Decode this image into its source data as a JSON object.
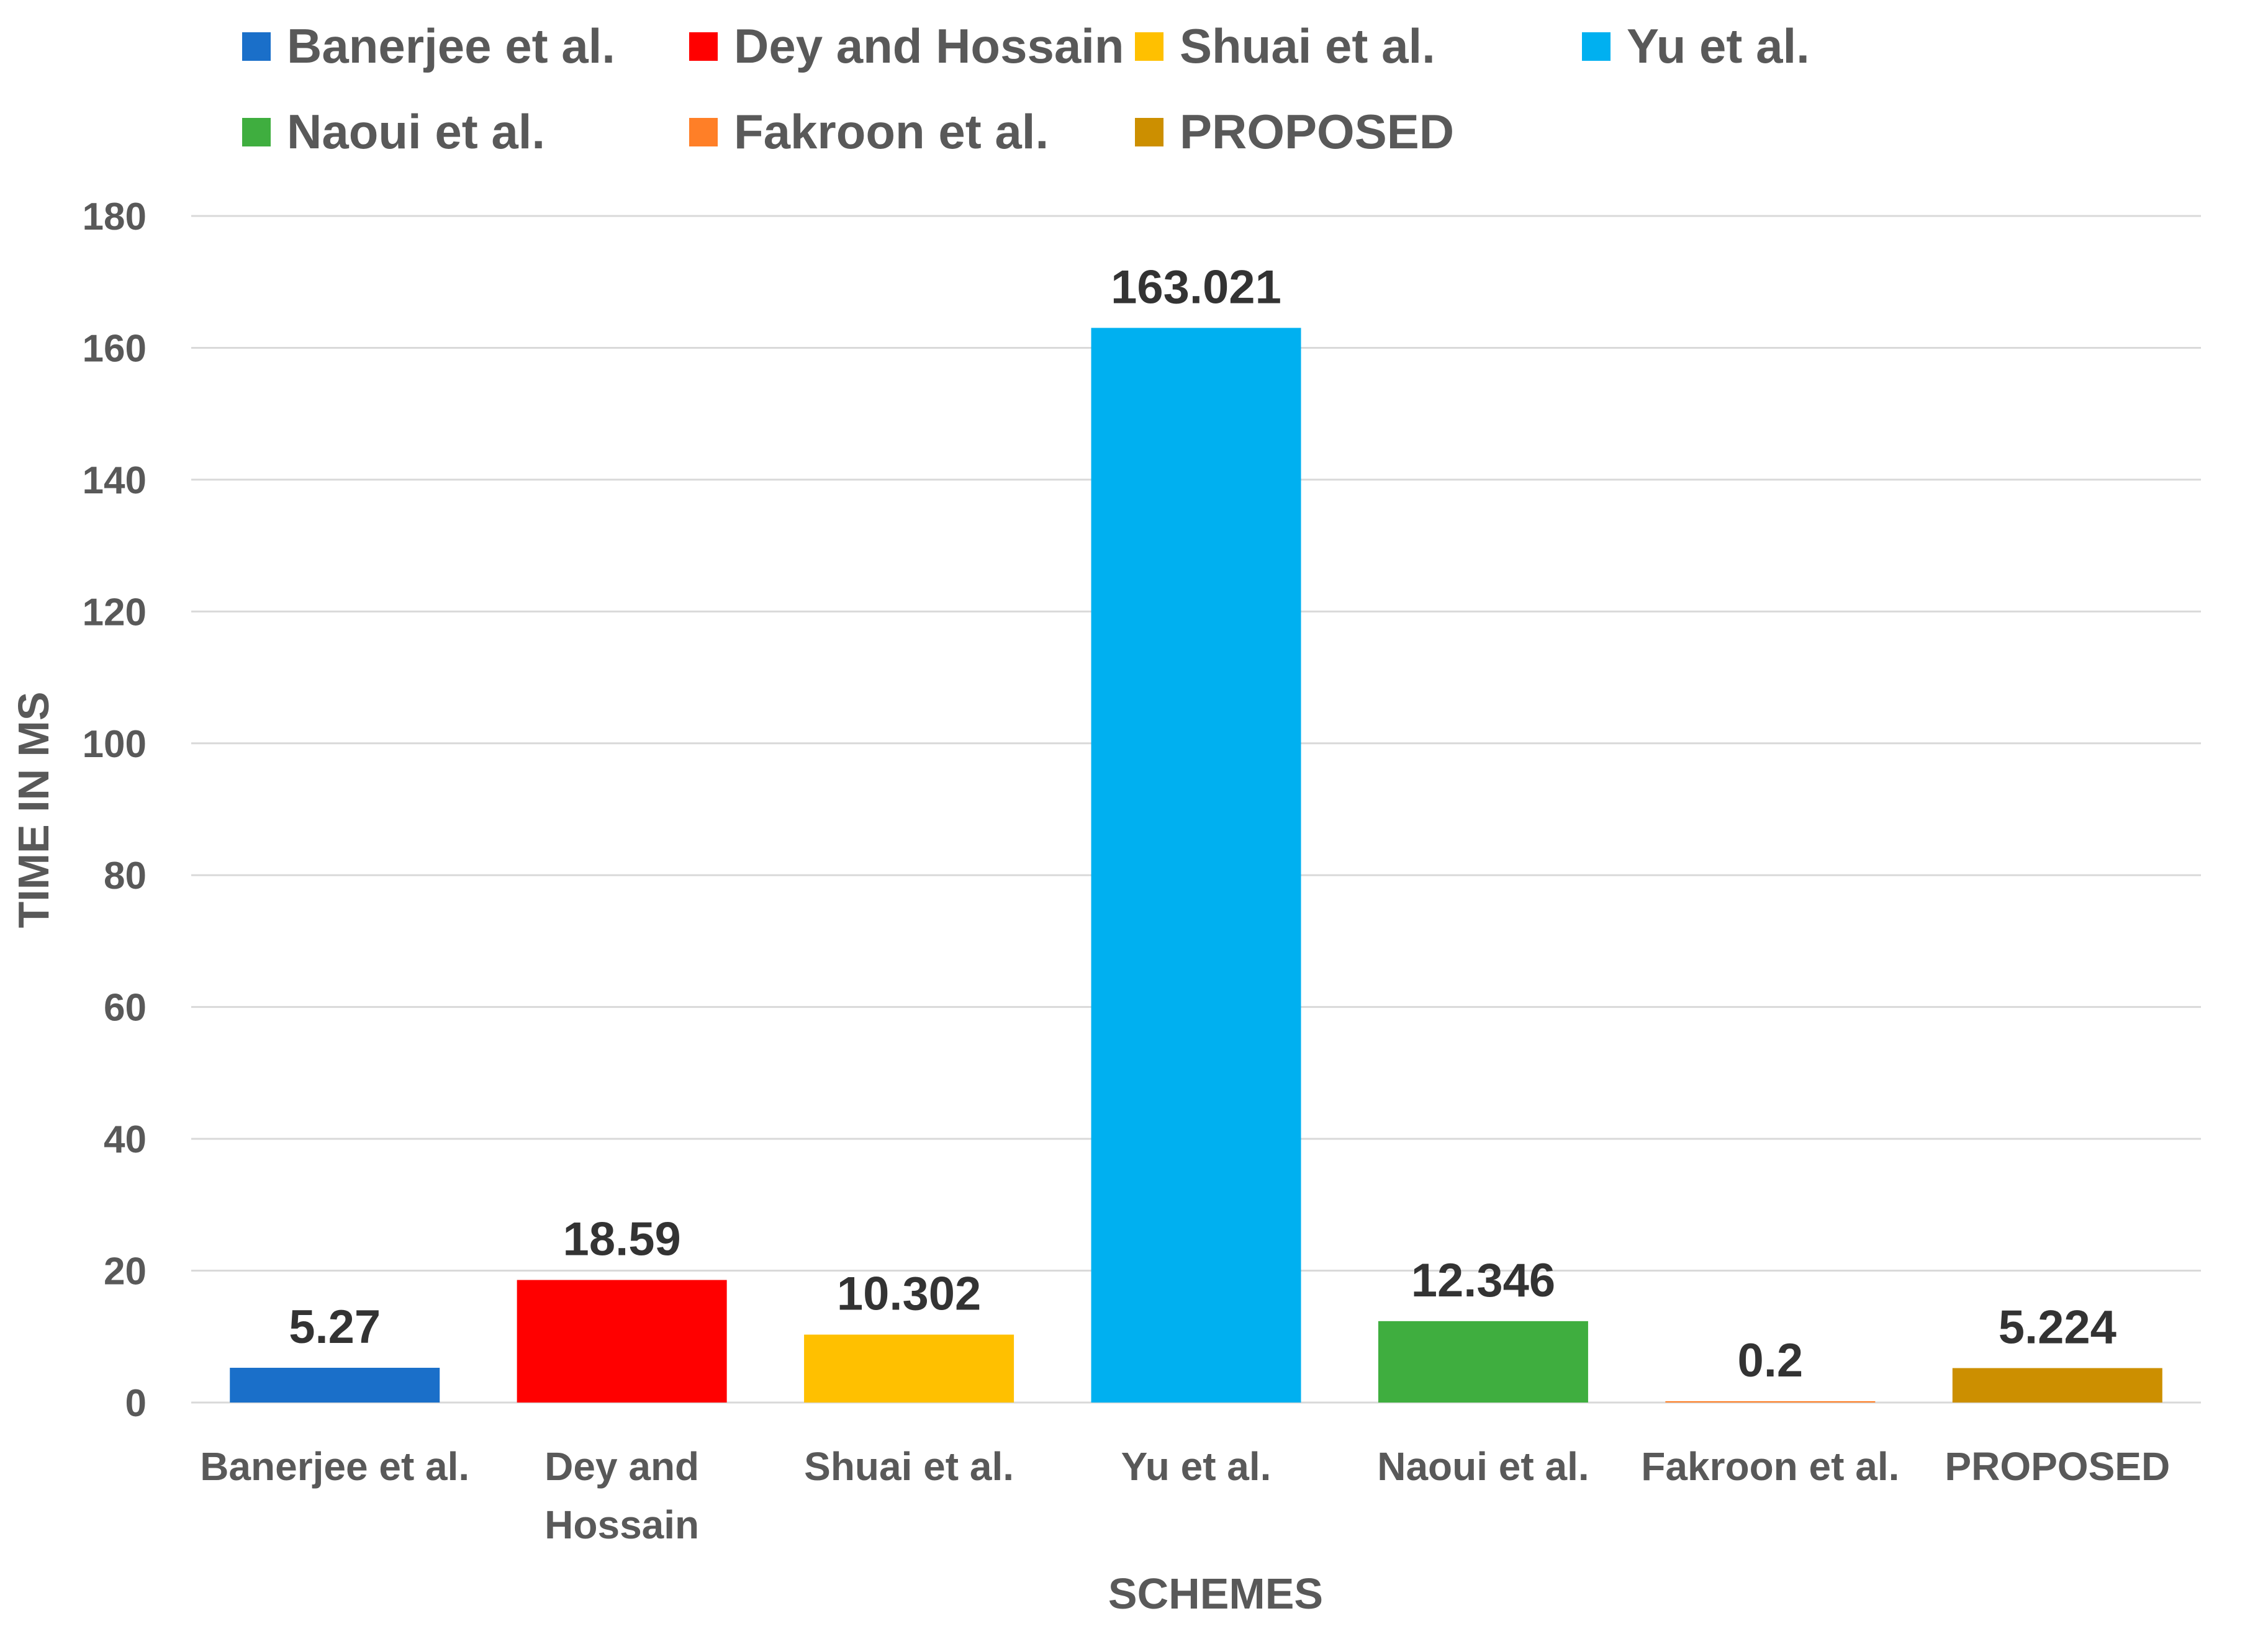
{
  "chart_data": {
    "type": "bar",
    "title": "",
    "xlabel": "SCHEMES",
    "ylabel": "TIME IN MS",
    "ylim": [
      0,
      180
    ],
    "yticks": [
      0,
      20,
      40,
      60,
      80,
      100,
      120,
      140,
      160,
      180
    ],
    "grid": true,
    "legend_position": "top",
    "categories": [
      {
        "name": "Banerjee et al.",
        "label_lines": [
          "Banerjee et al."
        ]
      },
      {
        "name": "Dey and Hossain",
        "label_lines": [
          "Dey and",
          "Hossain"
        ]
      },
      {
        "name": "Shuai et al.",
        "label_lines": [
          "Shuai et al."
        ]
      },
      {
        "name": "Yu et al.",
        "label_lines": [
          "Yu et al."
        ]
      },
      {
        "name": "Naoui et al.",
        "label_lines": [
          "Naoui et al."
        ]
      },
      {
        "name": "Fakroon et al.",
        "label_lines": [
          "Fakroon et al."
        ]
      },
      {
        "name": "PROPOSED",
        "label_lines": [
          "PROPOSED"
        ]
      }
    ],
    "values": [
      5.27,
      18.59,
      10.302,
      163.021,
      12.346,
      0.2,
      5.224
    ],
    "data_labels": [
      "5.27",
      "18.59",
      "10.302",
      "163.021",
      "12.346",
      "0.2",
      "5.224"
    ],
    "colors": [
      "#1a6fc9",
      "#ff0000",
      "#ffc000",
      "#00b0f0",
      "#3fae3f",
      "#ff7f27",
      "#cc8f00"
    ],
    "legend": [
      "Banerjee et al.",
      "Dey and Hossain",
      "Shuai et al.",
      "Yu et al.",
      "Naoui et al.",
      "Fakroon et al.",
      "PROPOSED"
    ]
  }
}
